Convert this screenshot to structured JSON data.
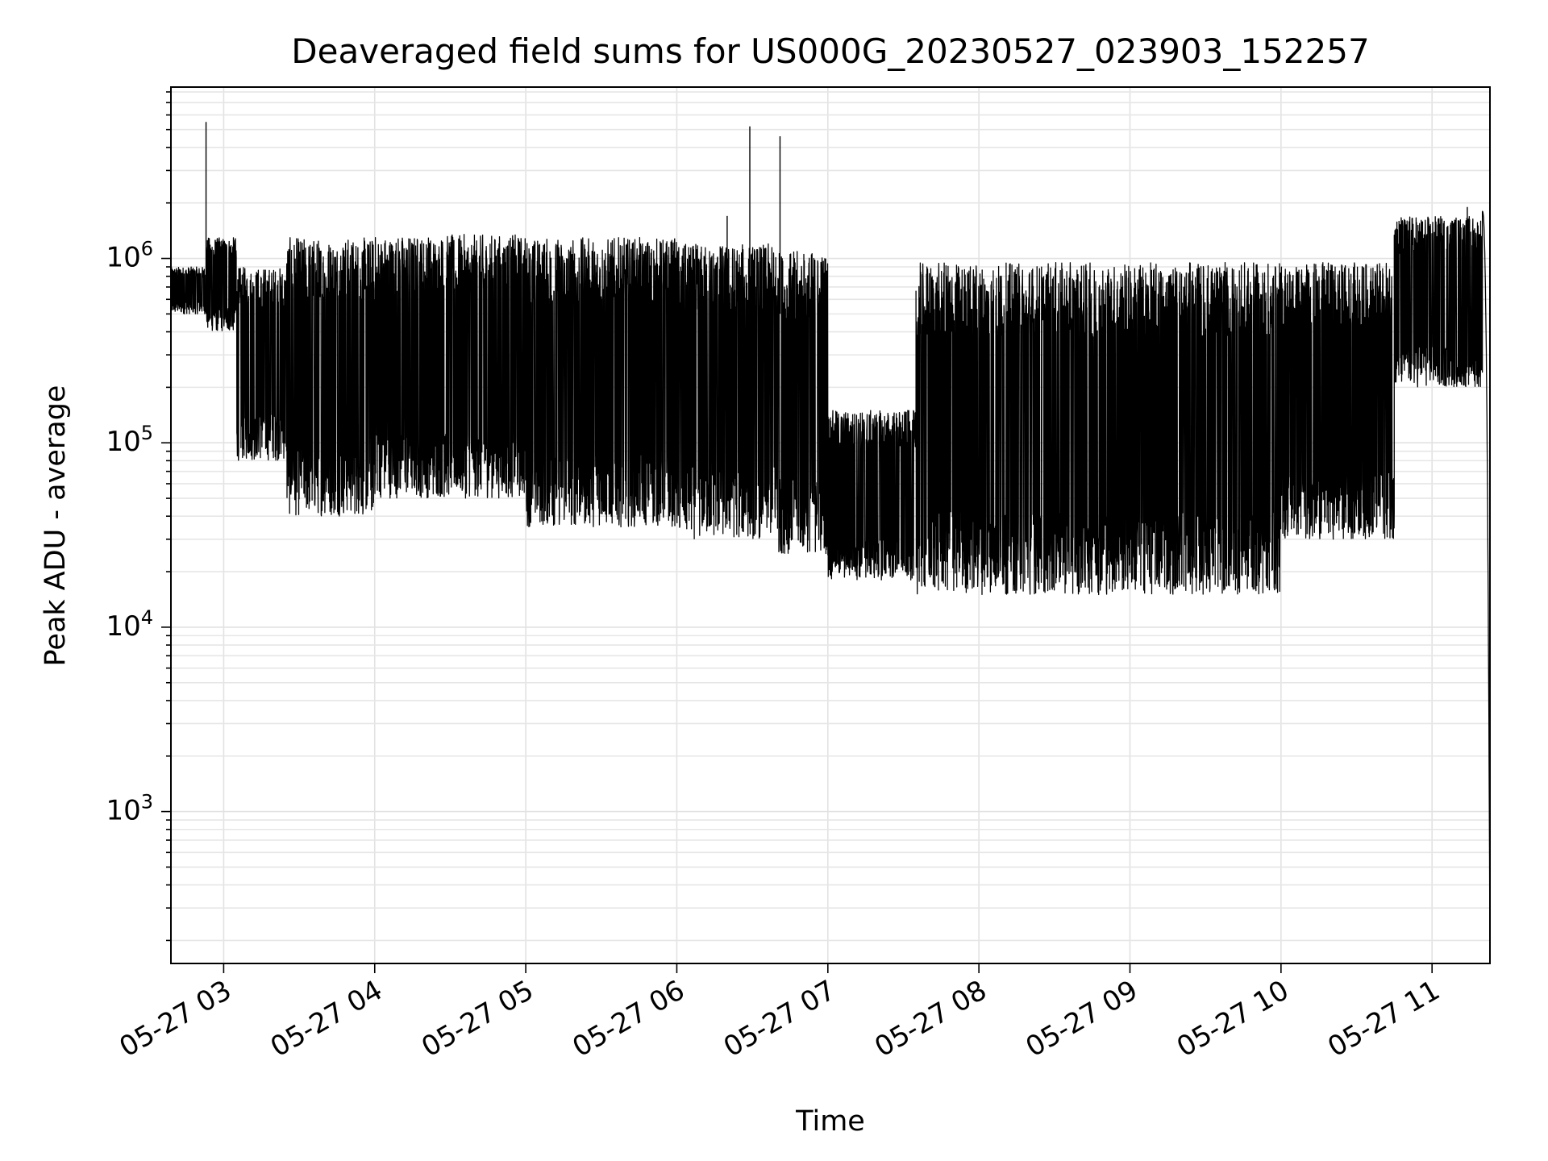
{
  "chart_data": {
    "type": "line",
    "title": "Deaveraged field sums for US000G_20230527_023903_152257",
    "xlabel": "Time",
    "ylabel": "Peak ADU - average",
    "yscale": "log",
    "ylim": [
      150,
      8500000
    ],
    "xlim": [
      "2023-05-27 02:39:03",
      "2023-05-27 11:23:00"
    ],
    "grid": "on (major and minor)",
    "line_color": "#000000",
    "x_ticks": [
      {
        "label": "05-27 03",
        "hour": 3
      },
      {
        "label": "05-27 04",
        "hour": 4
      },
      {
        "label": "05-27 05",
        "hour": 5
      },
      {
        "label": "05-27 06",
        "hour": 6
      },
      {
        "label": "05-27 07",
        "hour": 7
      },
      {
        "label": "05-27 08",
        "hour": 8
      },
      {
        "label": "05-27 09",
        "hour": 9
      },
      {
        "label": "05-27 10",
        "hour": 10
      },
      {
        "label": "05-27 11",
        "hour": 11
      }
    ],
    "y_ticks": [
      {
        "base": "10",
        "exp": "3",
        "value": 1000
      },
      {
        "base": "10",
        "exp": "4",
        "value": 10000
      },
      {
        "base": "10",
        "exp": "5",
        "value": 100000
      },
      {
        "base": "10",
        "exp": "6",
        "value": 1000000
      }
    ],
    "series": [
      {
        "name": "",
        "segments": [
          {
            "start": "02:39",
            "end": "02:53",
            "low": 500000,
            "high": 900000
          },
          {
            "start": "02:53",
            "end": "03:05",
            "low": 400000,
            "high": 1300000
          },
          {
            "start": "03:05",
            "end": "03:25",
            "low": 80000,
            "high": 900000
          },
          {
            "start": "03:25",
            "end": "04:00",
            "low": 40000,
            "high": 1300000
          },
          {
            "start": "04:00",
            "end": "05:00",
            "low": 50000,
            "high": 1350000
          },
          {
            "start": "05:00",
            "end": "06:00",
            "low": 35000,
            "high": 1300000
          },
          {
            "start": "06:00",
            "end": "06:40",
            "low": 30000,
            "high": 1200000
          },
          {
            "start": "06:40",
            "end": "07:00",
            "low": 25000,
            "high": 1100000
          },
          {
            "start": "07:00",
            "end": "07:35",
            "low": 18000,
            "high": 150000
          },
          {
            "start": "07:35",
            "end": "09:00",
            "low": 15000,
            "high": 950000
          },
          {
            "start": "09:00",
            "end": "10:00",
            "low": 15000,
            "high": 950000
          },
          {
            "start": "10:00",
            "end": "10:45",
            "low": 30000,
            "high": 950000
          },
          {
            "start": "10:45",
            "end": "11:20",
            "low": 200000,
            "high": 1700000
          },
          {
            "start": "11:20",
            "end": "11:23",
            "low": 160,
            "high": 1800000
          }
        ],
        "spikes": [
          {
            "time": "02:53",
            "value": 5500000
          },
          {
            "time": "06:29",
            "value": 5200000
          },
          {
            "time": "06:41",
            "value": 4600000
          },
          {
            "time": "06:20",
            "value": 1700000
          },
          {
            "time": "11:14",
            "value": 1900000
          }
        ]
      }
    ]
  }
}
